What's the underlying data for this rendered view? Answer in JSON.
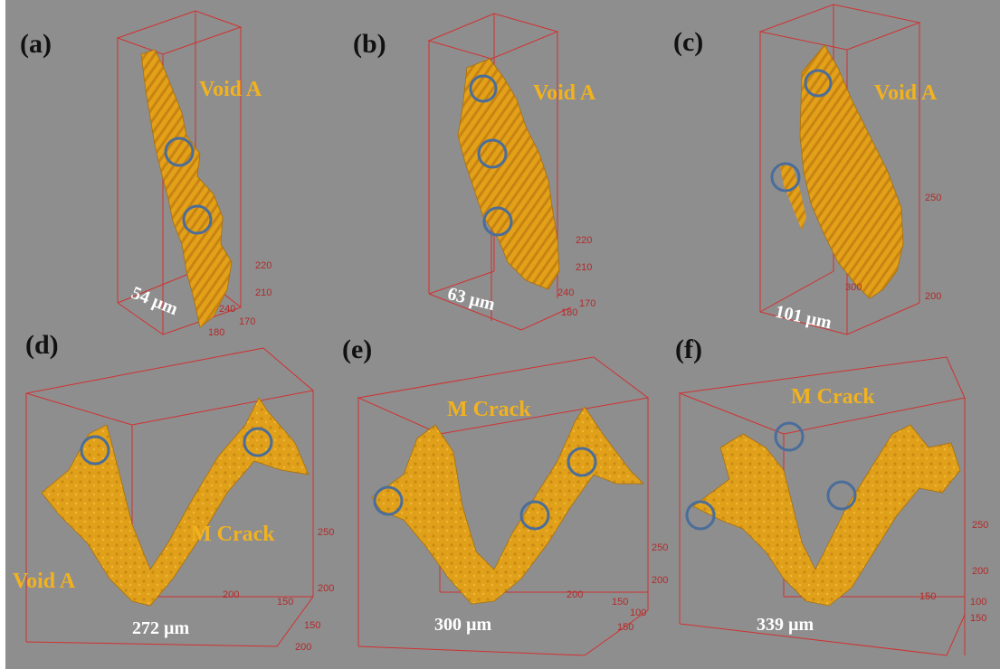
{
  "panels": [
    {
      "label": "(a)",
      "annotation": "Void A",
      "scale": "54 µm",
      "ticks": [
        "220",
        "210",
        "240",
        "170",
        "180"
      ]
    },
    {
      "label": "(b)",
      "annotation": "Void A",
      "scale": "63 µm",
      "ticks": [
        "220",
        "210",
        "240",
        "170",
        "180"
      ]
    },
    {
      "label": "(c)",
      "annotation": "Void A",
      "scale": "101 µm",
      "ticks": [
        "250",
        "300",
        "200"
      ]
    },
    {
      "label": "(d)",
      "annotations": [
        "M Crack",
        "Void A"
      ],
      "scale": "272 µm",
      "ticks": [
        "250",
        "200",
        "200",
        "150",
        "150",
        "200"
      ]
    },
    {
      "label": "(e)",
      "annotation": "M Crack",
      "scale": "300 µm",
      "ticks": [
        "250",
        "200",
        "200",
        "150",
        "100",
        "150"
      ]
    },
    {
      "label": "(f)",
      "annotation": "M Crack",
      "scale": "339 µm",
      "ticks": [
        "250",
        "200",
        "150",
        "100",
        "150"
      ]
    }
  ],
  "colors": {
    "background": "#8e8e8e",
    "object": "#e3a019",
    "circle": "#4a6d9a",
    "box": "#d23030",
    "annotation": "#f2b21f"
  }
}
